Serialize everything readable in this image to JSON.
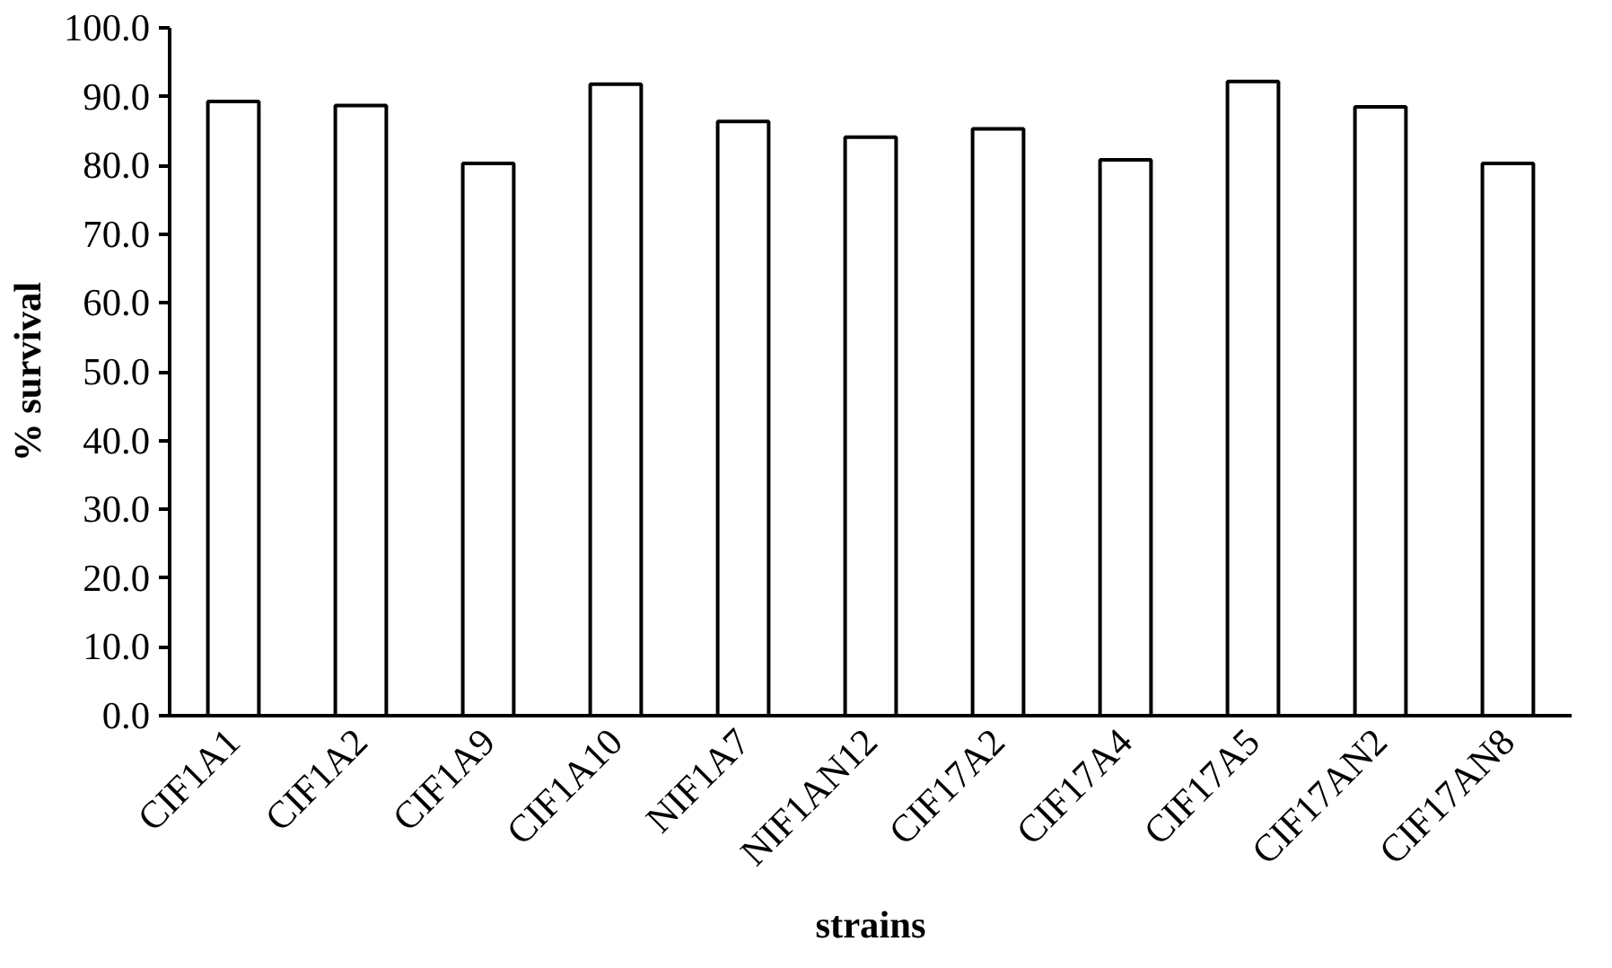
{
  "chart_data": {
    "type": "bar",
    "xlabel": "strains",
    "ylabel": "% survival",
    "categories": [
      "CIF1A1",
      "CIF1A2",
      "CIF1A9",
      "CIF1A10",
      "NIF1A7",
      "NIF1AN12",
      "CIF17A2",
      "CIF17A4",
      "CIF17A5",
      "CIF17AN2",
      "CIF17AN8"
    ],
    "values": [
      89.3,
      88.7,
      80.3,
      91.8,
      86.4,
      84.1,
      85.3,
      80.8,
      92.2,
      88.5,
      80.3
    ],
    "color": "#ffffff",
    "ylim": [
      0,
      100
    ],
    "yticks": [
      {
        "value": 0,
        "label": "0.0"
      },
      {
        "value": 10,
        "label": "10.0"
      },
      {
        "value": 20,
        "label": "20.0"
      },
      {
        "value": 30,
        "label": "30.0"
      },
      {
        "value": 40,
        "label": "40.0"
      },
      {
        "value": 50,
        "label": "50.0"
      },
      {
        "value": 60,
        "label": "60.0"
      },
      {
        "value": 70,
        "label": "70.0"
      },
      {
        "value": 80,
        "label": "80.0"
      },
      {
        "value": 90,
        "label": "90.0"
      },
      {
        "value": 100,
        "label": "100.0"
      }
    ],
    "grid": false
  }
}
